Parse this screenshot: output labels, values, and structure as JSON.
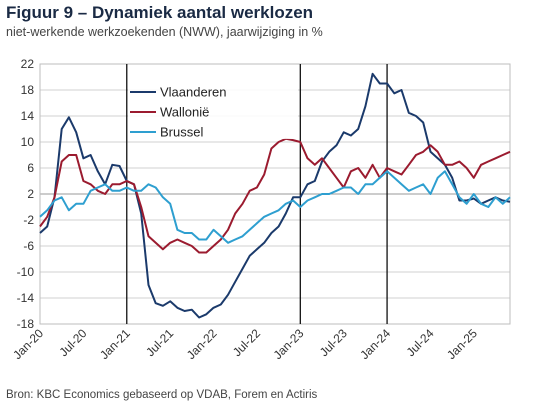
{
  "header": {
    "title": "Figuur 9 – Dynamiek aantal werklozen",
    "subtitle": "niet-werkende werkzoekenden (NWW), jaarwijziging in %"
  },
  "footer": {
    "source": "Bron: KBC Economics gebaseerd op VDAB, Forem en Actiris"
  },
  "chart_data": {
    "type": "line",
    "title": "Figuur 9 – Dynamiek aantal werklozen",
    "subtitle": "niet-werkende werkzoekenden (NWW), jaarwijziging in %",
    "xlabel": "",
    "ylabel": "",
    "ylim": [
      -18,
      22
    ],
    "yticks": [
      22,
      18,
      14,
      10,
      6,
      2,
      -2,
      -6,
      -10,
      -14,
      -18
    ],
    "x_start": "2020-01",
    "x_end": "2025-06",
    "x_tick_labels": [
      "Jan-20",
      "Jul-20",
      "Jan-21",
      "Jul-21",
      "Jan-22",
      "Jul-22",
      "Jan-23",
      "Jul-23",
      "Jan-24",
      "Jul-24",
      "Jan-25"
    ],
    "vertical_lines": [
      "Jan-21",
      "Jan-23",
      "Jan-24"
    ],
    "grid": "horizontal",
    "legend_position": "top-center",
    "months": [
      "2020-01",
      "2020-02",
      "2020-03",
      "2020-04",
      "2020-05",
      "2020-06",
      "2020-07",
      "2020-08",
      "2020-09",
      "2020-10",
      "2020-11",
      "2020-12",
      "2021-01",
      "2021-02",
      "2021-03",
      "2021-04",
      "2021-05",
      "2021-06",
      "2021-07",
      "2021-08",
      "2021-09",
      "2021-10",
      "2021-11",
      "2021-12",
      "2022-01",
      "2022-02",
      "2022-03",
      "2022-04",
      "2022-05",
      "2022-06",
      "2022-07",
      "2022-08",
      "2022-09",
      "2022-10",
      "2022-11",
      "2022-12",
      "2023-01",
      "2023-02",
      "2023-03",
      "2023-04",
      "2023-05",
      "2023-06",
      "2023-07",
      "2023-08",
      "2023-09",
      "2023-10",
      "2023-11",
      "2023-12",
      "2024-01",
      "2024-02",
      "2024-03",
      "2024-04",
      "2024-05",
      "2024-06",
      "2024-07",
      "2024-08",
      "2024-09",
      "2024-10",
      "2024-11",
      "2024-12",
      "2025-01",
      "2025-02",
      "2025-03",
      "2025-04",
      "2025-05",
      "2025-06"
    ],
    "series": [
      {
        "name": "Vlaanderen",
        "color": "#1b3a6b",
        "values": [
          -4.0,
          -3.0,
          1.5,
          12.0,
          13.8,
          11.5,
          7.5,
          8.0,
          5.5,
          3.5,
          6.5,
          6.3,
          4.0,
          3.5,
          -1.0,
          -12.0,
          -14.8,
          -15.2,
          -14.5,
          -15.5,
          -16.0,
          -15.8,
          -17.0,
          -16.5,
          -15.5,
          -15.0,
          -13.5,
          -11.5,
          -9.5,
          -7.5,
          -6.5,
          -5.5,
          -4.0,
          -3.0,
          -1.0,
          1.5,
          1.5,
          3.5,
          4.0,
          7.0,
          8.5,
          9.5,
          11.5,
          11.0,
          12.0,
          15.5,
          20.5,
          19.0,
          19.0,
          17.5,
          18.0,
          14.5,
          14.0,
          13.0,
          8.5,
          7.5,
          6.5,
          4.5,
          1.0,
          1.0,
          1.3,
          0.5,
          1.0,
          1.5,
          1.0,
          0.8
        ]
      },
      {
        "name": "Wallonië",
        "color": "#9b1b2f",
        "values": [
          -3.0,
          -1.5,
          1.5,
          7.0,
          8.0,
          8.0,
          4.0,
          3.5,
          2.5,
          2.0,
          3.5,
          3.5,
          4.0,
          3.5,
          0.0,
          -4.5,
          -5.5,
          -6.5,
          -5.5,
          -5.0,
          -5.5,
          -6.0,
          -7.0,
          -7.0,
          -6.0,
          -5.0,
          -3.5,
          -1.0,
          0.5,
          2.5,
          3.0,
          5.0,
          9.0,
          10.0,
          10.5,
          10.3,
          10.0,
          7.5,
          6.5,
          7.5,
          6.0,
          4.5,
          3.0,
          5.5,
          6.0,
          4.5,
          6.5,
          4.5,
          6.0,
          5.5,
          5.0,
          6.5,
          8.0,
          8.5,
          9.5,
          8.5,
          6.5,
          6.5,
          7.0,
          6.0,
          4.5,
          6.5,
          7.0,
          7.5,
          8.0,
          8.5
        ]
      },
      {
        "name": "Brussel",
        "color": "#2e9fd0",
        "values": [
          -1.5,
          -0.5,
          1.0,
          1.5,
          -0.5,
          0.5,
          0.5,
          2.5,
          3.0,
          3.5,
          2.5,
          2.5,
          3.0,
          2.5,
          2.5,
          3.5,
          3.0,
          1.5,
          0.5,
          -3.5,
          -4.0,
          -4.0,
          -5.0,
          -5.0,
          -3.5,
          -4.5,
          -5.5,
          -5.0,
          -4.5,
          -3.5,
          -2.5,
          -1.5,
          -1.0,
          -0.5,
          0.5,
          1.0,
          0.0,
          1.0,
          1.5,
          2.0,
          2.0,
          2.5,
          3.0,
          3.0,
          2.0,
          3.5,
          3.5,
          4.5,
          5.5,
          4.5,
          3.5,
          2.5,
          3.0,
          3.5,
          2.0,
          4.5,
          5.5,
          3.5,
          1.5,
          0.5,
          2.0,
          0.5,
          0.0,
          1.5,
          0.5,
          1.5
        ]
      }
    ]
  }
}
